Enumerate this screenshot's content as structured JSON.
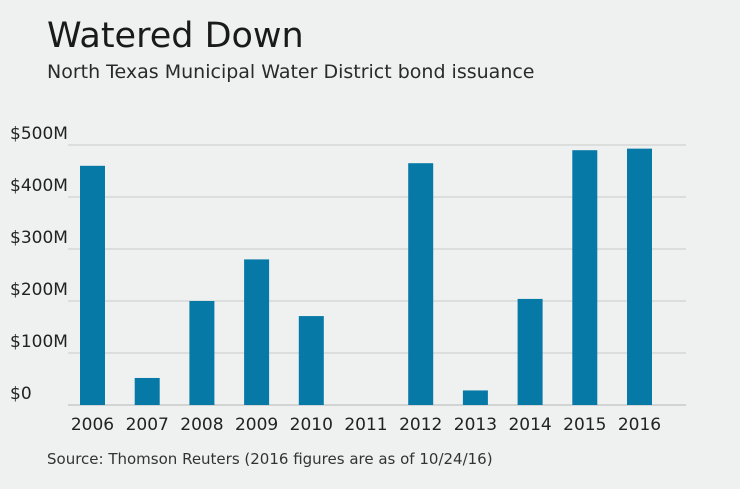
{
  "title": "Watered Down",
  "subtitle": "North Texas Municipal Water District bond issuance",
  "source": "Source: Thomson Reuters (2016 figures are as of 10/24/16)",
  "colors": {
    "bar": "#0779a7",
    "grid": "#c8cacb",
    "background": "#eff1f1"
  },
  "chart_data": {
    "type": "bar",
    "title": "Watered Down",
    "subtitle": "North Texas Municipal Water District bond issuance",
    "xlabel": "",
    "ylabel": "",
    "categories": [
      "2006",
      "2007",
      "2008",
      "2009",
      "2010",
      "2011",
      "2012",
      "2013",
      "2014",
      "2015",
      "2016"
    ],
    "series": [
      {
        "values": [
          460,
          52,
          200,
          280,
          171,
          0,
          465,
          28,
          204,
          490,
          493
        ]
      }
    ],
    "ylim": [
      0,
      500
    ],
    "yticks": [
      0,
      100,
      200,
      300,
      400,
      500
    ],
    "ytick_labels": [
      "$0",
      "$100M",
      "$200M",
      "$300M",
      "$400M",
      "$500M"
    ],
    "grid": true,
    "legend": "none"
  }
}
